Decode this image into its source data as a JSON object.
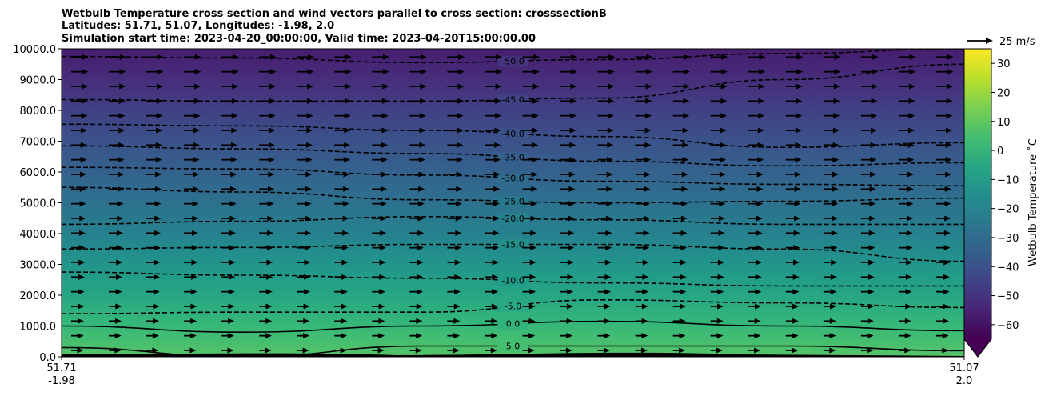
{
  "chart_data": {
    "type": "contour",
    "title_lines": [
      "Wetbulb Temperature cross section and wind vectors parallel to cross section: crosssectionB",
      "Latitudes: 51.71, 51.07, Longitudes: -1.98, 2.0",
      "Simulation start time: 2023-04-20_00:00:00, Valid time: 2023-04-20T15:00:00.00"
    ],
    "xlabel": "",
    "ylabel": "",
    "x_ticks": [
      {
        "line1": "51.71",
        "line2": "-1.98",
        "pos": 0
      },
      {
        "line1": "51.07",
        "line2": "2.0",
        "pos": 1
      }
    ],
    "ylim": [
      0,
      10000
    ],
    "y_ticks": [
      "0.0",
      "1000.0",
      "2000.0",
      "3000.0",
      "4000.0",
      "5000.0",
      "6000.0",
      "7000.0",
      "8000.0",
      "9000.0",
      "10000.0"
    ],
    "y_tick_values": [
      0,
      1000,
      2000,
      3000,
      4000,
      5000,
      6000,
      7000,
      8000,
      9000,
      10000
    ],
    "colorbar": {
      "label": "Wetbulb Temperature $^\\circ$C",
      "label_display": "Wetbulb Temperature ˚C",
      "range": [
        -65,
        35
      ],
      "ticks": [
        "30",
        "20",
        "10",
        "0",
        "−10",
        "−20",
        "−30",
        "−40",
        "−50",
        "−60"
      ],
      "tick_values": [
        30,
        20,
        10,
        0,
        -10,
        -20,
        -30,
        -40,
        -50,
        -60
      ],
      "colormap": "viridis",
      "extend": "min"
    },
    "quiver_key": {
      "label": "25 m/s",
      "value": 25
    },
    "contour_lines": [
      {
        "level": -50,
        "label": "-50.0",
        "heights": [
          9750,
          9700,
          9550,
          9650,
          9850,
          10000
        ]
      },
      {
        "level": -45,
        "label": "-45.0",
        "heights": [
          8350,
          8300,
          8300,
          8400,
          9000,
          9500
        ]
      },
      {
        "level": -40,
        "label": "-40.0",
        "heights": [
          7550,
          7500,
          7350,
          7150,
          6800,
          6950
        ]
      },
      {
        "level": -35,
        "label": "-35.0",
        "heights": [
          6850,
          6750,
          6600,
          6350,
          6200,
          6300
        ]
      },
      {
        "level": -30,
        "label": "-30.0",
        "heights": [
          6150,
          6100,
          5900,
          5700,
          5600,
          5550
        ]
      },
      {
        "level": -25,
        "label": "-25.0",
        "heights": [
          5500,
          5350,
          5100,
          5000,
          5050,
          5150
        ]
      },
      {
        "level": -20,
        "label": "-20.0",
        "heights": [
          4300,
          4400,
          4550,
          4450,
          4300,
          4300
        ]
      },
      {
        "level": -15,
        "label": "-15.0",
        "heights": [
          3500,
          3550,
          3650,
          3650,
          3500,
          3100
        ]
      },
      {
        "level": -10,
        "label": "-10.0",
        "heights": [
          2750,
          2650,
          2550,
          2400,
          2300,
          2300
        ]
      },
      {
        "level": -5,
        "label": "-5.0",
        "heights": [
          1400,
          1450,
          1450,
          1850,
          1750,
          1600
        ]
      },
      {
        "level": 0,
        "label": "0.0",
        "heights": [
          1000,
          800,
          1000,
          1150,
          1000,
          850
        ]
      },
      {
        "level": 5,
        "label": "5.0",
        "heights": [
          300,
          0,
          350,
          350,
          350,
          200
        ]
      }
    ],
    "temperature_profile": {
      "heights": [
        0,
        1000,
        2000,
        3000,
        4000,
        5000,
        6000,
        7000,
        8000,
        9000,
        10000
      ],
      "values": [
        8,
        2,
        -6,
        -13,
        -21,
        -28,
        -34,
        -40,
        -46,
        -52,
        -57
      ]
    },
    "wind": {
      "direction": "parallel, toward increasing distance",
      "typical_speed": 20
    }
  }
}
